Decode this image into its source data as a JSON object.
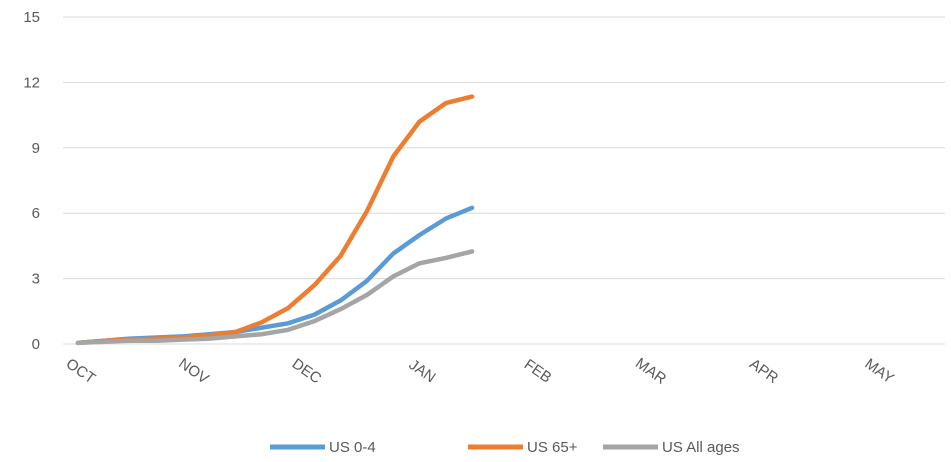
{
  "chart_data": {
    "type": "line",
    "title": "",
    "xlabel": "",
    "ylabel": "",
    "ylim": [
      0,
      15
    ],
    "yticks": [
      0,
      3,
      6,
      9,
      12,
      15
    ],
    "ytick_labels": [
      "0",
      "3",
      "6",
      "9",
      "12",
      "15"
    ],
    "grid": true,
    "legend_position": "bottom",
    "month_labels": [
      "OCT",
      "NOV",
      "DEC",
      "JAN",
      "FEB",
      "MAR",
      "APR",
      "MAY"
    ],
    "month_positions": [
      0,
      4.3,
      8.6,
      13,
      17.4,
      21.7,
      26,
      30.4
    ],
    "x_max": 33,
    "series": [
      {
        "name": "US 0-4",
        "color": "#5B9BD5",
        "x": [
          0,
          1,
          2,
          3,
          4,
          5,
          6,
          7,
          8,
          9,
          10,
          11,
          12,
          13,
          14,
          15
        ],
        "values": [
          0.05,
          0.15,
          0.25,
          0.3,
          0.35,
          0.45,
          0.55,
          0.75,
          0.95,
          1.35,
          2.0,
          2.9,
          4.15,
          5.0,
          5.75,
          6.25
        ]
      },
      {
        "name": "US 65+",
        "color": "#ED7D31",
        "x": [
          0,
          1,
          2,
          3,
          4,
          5,
          6,
          7,
          8,
          9,
          10,
          11,
          12,
          13,
          14,
          15
        ],
        "values": [
          0.05,
          0.15,
          0.2,
          0.25,
          0.3,
          0.4,
          0.55,
          1.0,
          1.65,
          2.7,
          4.05,
          6.1,
          8.6,
          10.2,
          11.05,
          11.35
        ]
      },
      {
        "name": "US All ages",
        "color": "#A5A5A5",
        "x": [
          0,
          1,
          2,
          3,
          4,
          5,
          6,
          7,
          8,
          9,
          10,
          11,
          12,
          13,
          14,
          15
        ],
        "values": [
          0.05,
          0.1,
          0.15,
          0.15,
          0.2,
          0.25,
          0.35,
          0.45,
          0.65,
          1.05,
          1.6,
          2.25,
          3.1,
          3.7,
          3.95,
          4.25
        ]
      }
    ]
  }
}
